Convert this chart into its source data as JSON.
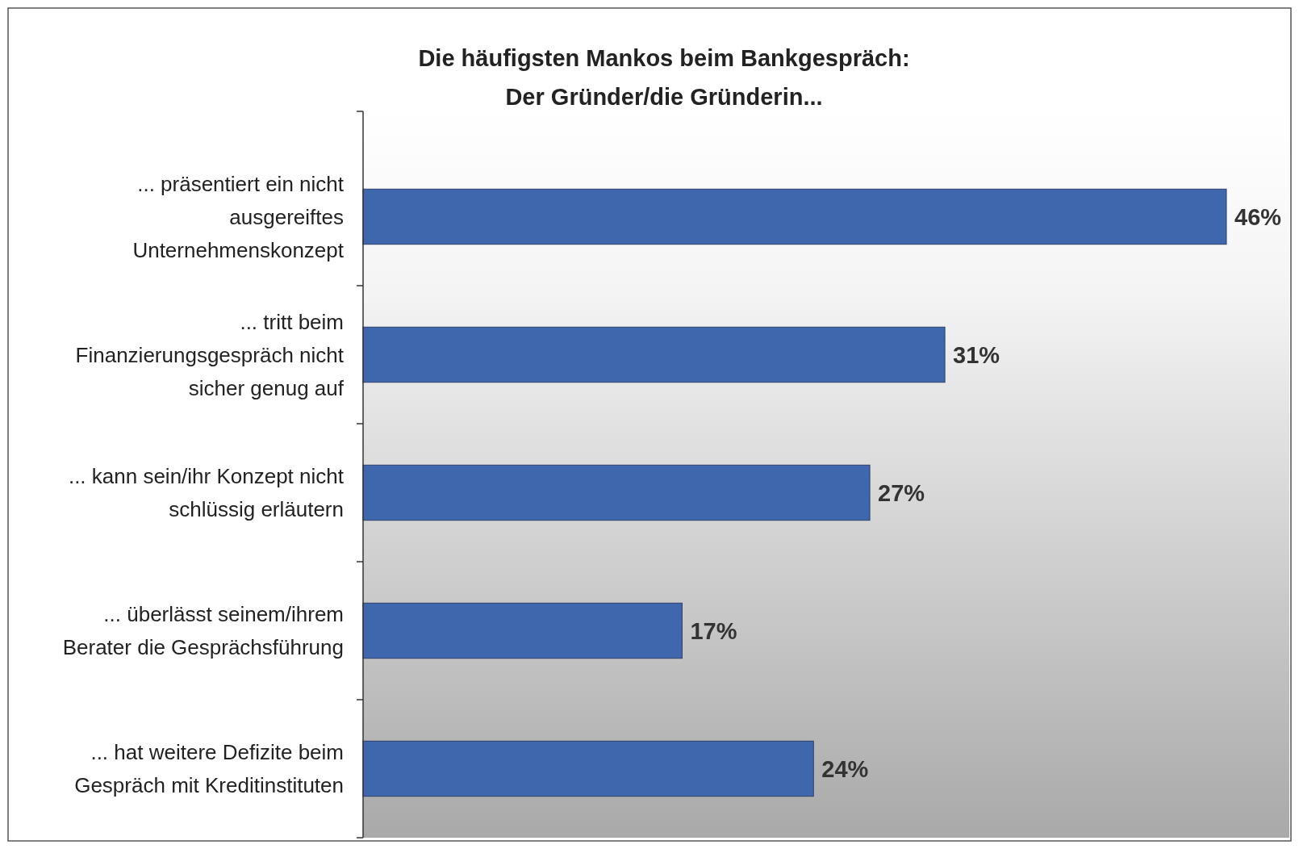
{
  "chart_data": {
    "type": "bar",
    "orientation": "horizontal",
    "title": "Die häufigsten Mankos beim Bankgespräch:\nDer Gründer/die Gründerin...",
    "categories": [
      "... präsentiert ein nicht ausgereiftes Unternehmenskonzept",
      "... tritt beim Finanzierungsgespräch nicht sicher genug auf",
      "... kann sein/ihr Konzept nicht schlüssig erläutern",
      "... überlässt seinem/ihrem Berater die Gesprächsführung",
      "... hat weitere Defizite beim Gespräch mit Kreditinstituten"
    ],
    "values": [
      46,
      31,
      27,
      17,
      24
    ],
    "value_labels": [
      "46%",
      "31%",
      "27%",
      "17%",
      "24%"
    ],
    "color": "#3f67ae"
  }
}
